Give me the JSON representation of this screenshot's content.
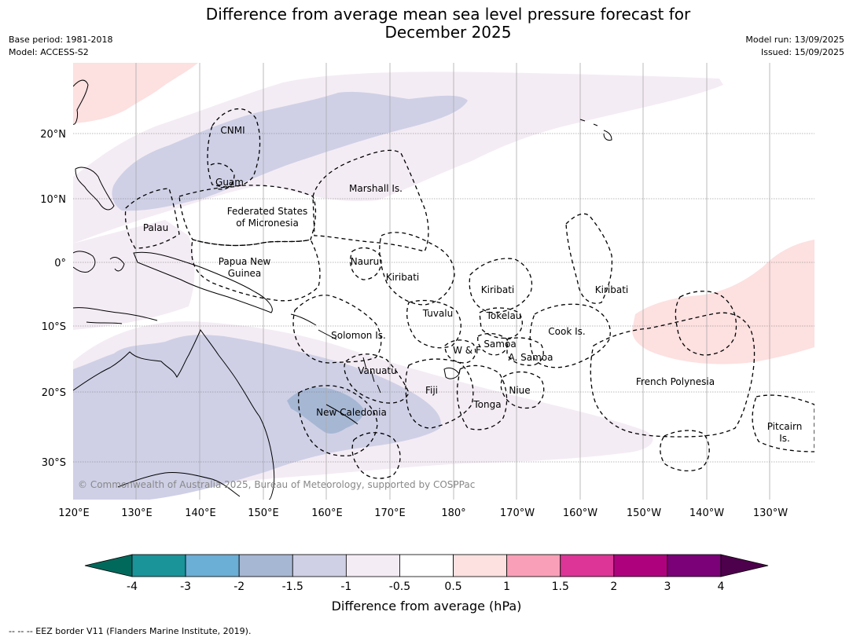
{
  "title": "Difference from average mean sea level pressure forecast for\nDecember 2025",
  "title_line1": "Difference from average mean sea level pressure forecast for",
  "title_line2": "December 2025",
  "meta_left": [
    "Base period: 1981-2018",
    "Model: ACCESS-S2"
  ],
  "meta_right": [
    "Model run: 13/09/2025",
    "Issued: 15/09/2025"
  ],
  "copyright": "© Commonwealth of Australia 2025, Bureau of Meteorology, supported by COSPPac",
  "lat_labels": [
    "20°N",
    "10°N",
    "0°",
    "10°S",
    "20°S",
    "30°S"
  ],
  "lon_labels": [
    "120°E",
    "130°E",
    "140°E",
    "150°E",
    "160°E",
    "170°E",
    "180°",
    "170°W",
    "160°W",
    "150°W",
    "140°W",
    "130°W"
  ],
  "regions": [
    {
      "name": "CNMI"
    },
    {
      "name": "Guam"
    },
    {
      "name": "Marshall Is."
    },
    {
      "name": "Federated States"
    },
    {
      "name": "of Micronesia"
    },
    {
      "name": "Palau"
    },
    {
      "name": "Papua New"
    },
    {
      "name": "Guinea"
    },
    {
      "name": "Nauru"
    },
    {
      "name": "Kiribati"
    },
    {
      "name": "Kiribati"
    },
    {
      "name": "Kiribati"
    },
    {
      "name": "Tuvalu"
    },
    {
      "name": "Tokelau"
    },
    {
      "name": "Cook Is."
    },
    {
      "name": "Solomon Is."
    },
    {
      "name": "W & F"
    },
    {
      "name": "Samoa"
    },
    {
      "name": "A. Samoa"
    },
    {
      "name": "Vanuatu"
    },
    {
      "name": "Fiji"
    },
    {
      "name": "Niue"
    },
    {
      "name": "French Polynesia"
    },
    {
      "name": "Tonga"
    },
    {
      "name": "New Caledonia"
    },
    {
      "name": "Pitcairn"
    },
    {
      "name": "Is."
    }
  ],
  "colorbar": {
    "title": "Difference from average (hPa)",
    "ticks": [
      "-4",
      "-3",
      "-2",
      "-1.5",
      "-1",
      "-0.5",
      "0.5",
      "1",
      "1.5",
      "2",
      "3",
      "4"
    ],
    "colors": {
      "below_-4": "#00695c",
      "-4_-3": "#1a9399",
      "-3_-2": "#6baed6",
      "-2_-1.5": "#a6b7d4",
      "-1.5_-1": "#cfd0e6",
      "-1_-0.5": "#f4ecf4",
      "-0.5_0.5": "#ffffff",
      "0.5_1": "#fde0e0",
      "1_1.5": "#f99fb7",
      "1.5_2": "#dd3497",
      "2_3": "#ae017e",
      "3_4": "#7a0177",
      "above_4": "#4d004b"
    }
  },
  "footnote": "--  --  -- EEZ border V11 (Flanders Marine Institute, 2019)."
}
